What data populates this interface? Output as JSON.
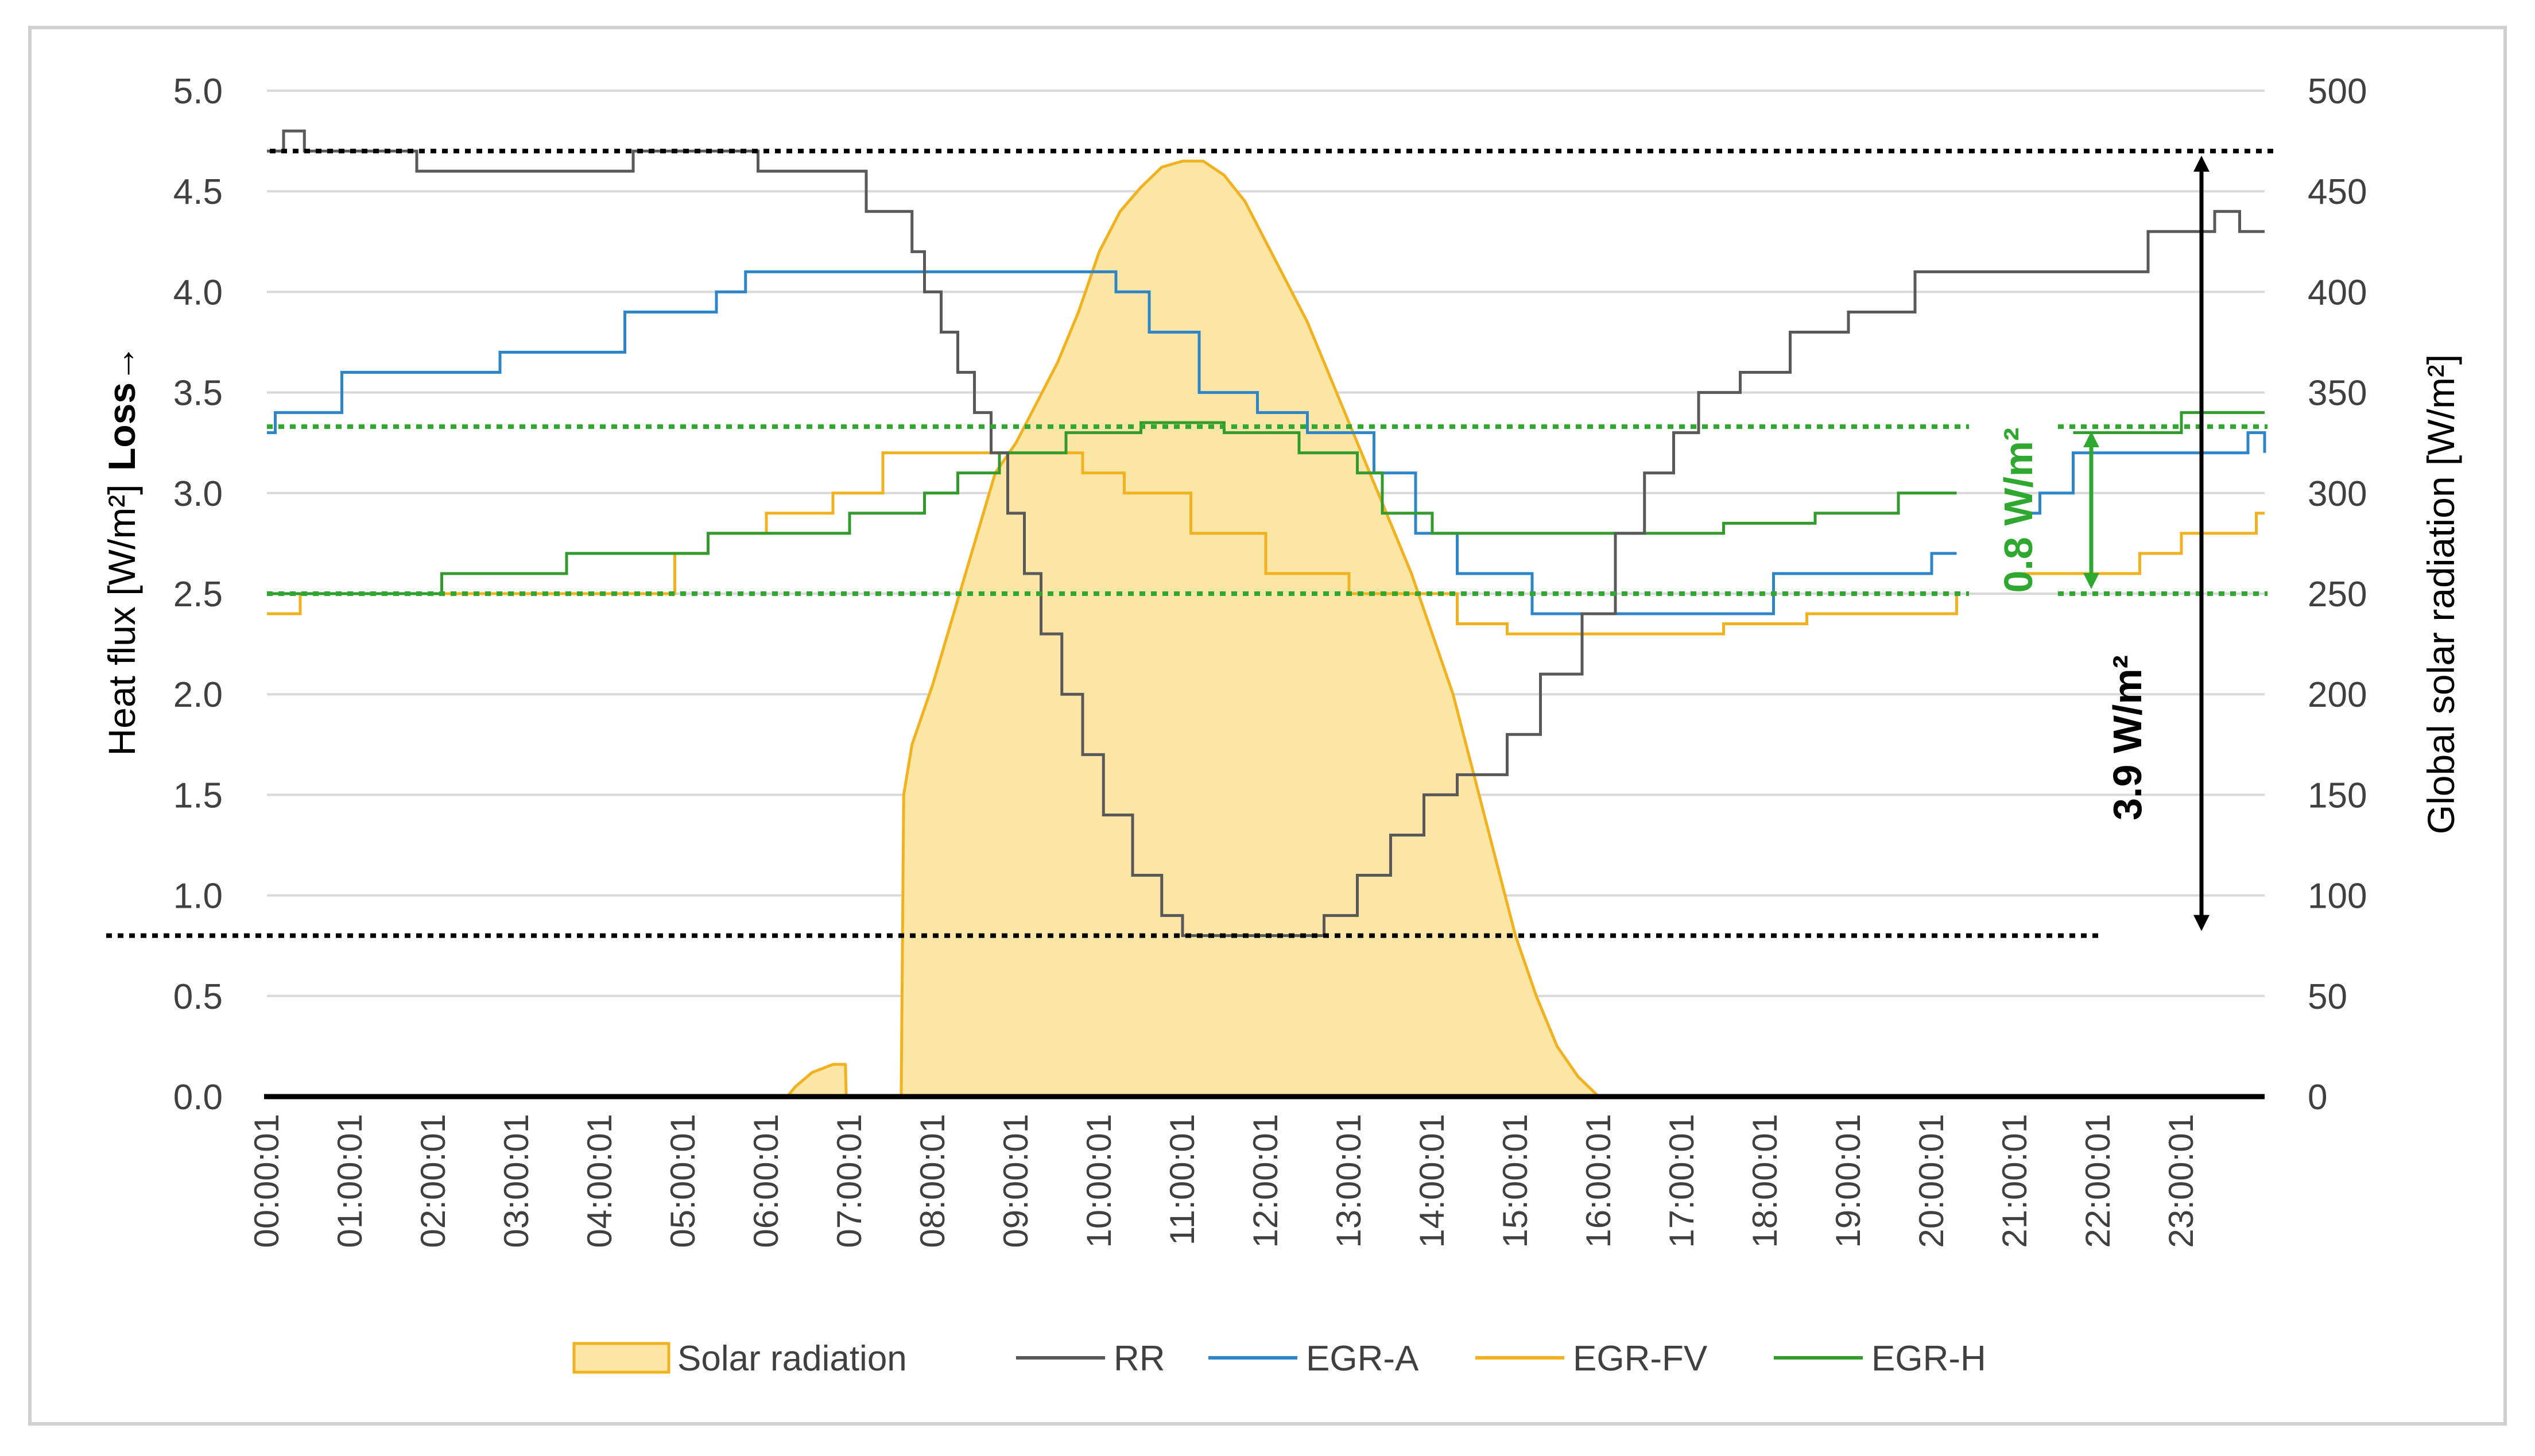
{
  "chart_data": {
    "type": "line",
    "title": "",
    "xlabel": "",
    "ylabel_left": "Heat flux [W/m²]",
    "ylabel_loss": "Loss→",
    "ylabel_right": "Global solar radiation [W/m²]",
    "ylim_left": [
      0,
      5
    ],
    "ylim_right": [
      0,
      500
    ],
    "left_ticks": [
      "0.0",
      "0.5",
      "1.0",
      "1.5",
      "2.0",
      "2.5",
      "3.0",
      "3.5",
      "4.0",
      "4.5",
      "5.0"
    ],
    "right_ticks": [
      "0",
      "50",
      "100",
      "150",
      "200",
      "250",
      "300",
      "350",
      "400",
      "450",
      "500"
    ],
    "x_ticks": [
      "00:00:01",
      "01:00:01",
      "02:00:01",
      "03:00:01",
      "04:00:01",
      "05:00:01",
      "06:00:01",
      "07:00:01",
      "08:00:01",
      "09:00:01",
      "10:00:01",
      "11:00:01",
      "12:00:01",
      "13:00:01",
      "14:00:01",
      "15:00:01",
      "16:00:01",
      "17:00:01",
      "18:00:01",
      "19:00:01",
      "20:00:01",
      "21:00:01",
      "22:00:01",
      "23:00:01"
    ],
    "x_range_hours": [
      0,
      24
    ],
    "grid": true,
    "legend_position": "bottom",
    "colors": {
      "solar_fill": "#FCE6A6",
      "solar_line": "#F2B220",
      "RR": "#595959",
      "EGR-A": "#2E86C8",
      "EGR-FV": "#F2B220",
      "EGR-H": "#339A2E",
      "annotation_green": "#2EA82E",
      "annotation_black": "#000000",
      "grid": "#D9D9D9",
      "axis_text": "#404040"
    },
    "series": [
      {
        "name": "Solar radiation",
        "kind": "area",
        "axis": "right",
        "points": [
          [
            0,
            0
          ],
          [
            6.25,
            0
          ],
          [
            6.35,
            5
          ],
          [
            6.55,
            12
          ],
          [
            6.8,
            16
          ],
          [
            6.95,
            16
          ],
          [
            6.96,
            0
          ],
          [
            7.62,
            0
          ],
          [
            7.65,
            150
          ],
          [
            7.75,
            175
          ],
          [
            8.0,
            205
          ],
          [
            8.25,
            240
          ],
          [
            8.5,
            275
          ],
          [
            8.75,
            310
          ],
          [
            9.0,
            325
          ],
          [
            9.25,
            345
          ],
          [
            9.5,
            365
          ],
          [
            9.75,
            390
          ],
          [
            10.0,
            420
          ],
          [
            10.25,
            440
          ],
          [
            10.5,
            452
          ],
          [
            10.75,
            462
          ],
          [
            11.0,
            465
          ],
          [
            11.25,
            465
          ],
          [
            11.5,
            458
          ],
          [
            11.75,
            445
          ],
          [
            12.0,
            425
          ],
          [
            12.25,
            405
          ],
          [
            12.5,
            385
          ],
          [
            12.75,
            360
          ],
          [
            13.0,
            335
          ],
          [
            13.25,
            310
          ],
          [
            13.5,
            285
          ],
          [
            13.75,
            260
          ],
          [
            14.0,
            230
          ],
          [
            14.25,
            200
          ],
          [
            14.5,
            160
          ],
          [
            14.75,
            120
          ],
          [
            15.0,
            80
          ],
          [
            15.25,
            50
          ],
          [
            15.5,
            25
          ],
          [
            15.75,
            10
          ],
          [
            16.0,
            0
          ],
          [
            24,
            0
          ]
        ]
      },
      {
        "name": "RR",
        "kind": "step",
        "axis": "left",
        "points": [
          [
            0,
            4.7
          ],
          [
            0.2,
            4.8
          ],
          [
            0.45,
            4.7
          ],
          [
            1.8,
            4.6
          ],
          [
            4.4,
            4.7
          ],
          [
            5.9,
            4.6
          ],
          [
            7.2,
            4.4
          ],
          [
            7.75,
            4.2
          ],
          [
            7.9,
            4.0
          ],
          [
            8.1,
            3.8
          ],
          [
            8.3,
            3.6
          ],
          [
            8.5,
            3.4
          ],
          [
            8.7,
            3.2
          ],
          [
            8.9,
            2.9
          ],
          [
            9.1,
            2.6
          ],
          [
            9.3,
            2.3
          ],
          [
            9.55,
            2.0
          ],
          [
            9.8,
            1.7
          ],
          [
            10.05,
            1.4
          ],
          [
            10.4,
            1.1
          ],
          [
            10.75,
            0.9
          ],
          [
            11.0,
            0.8
          ],
          [
            12.7,
            0.9
          ],
          [
            13.1,
            1.1
          ],
          [
            13.5,
            1.3
          ],
          [
            13.9,
            1.5
          ],
          [
            14.3,
            1.6
          ],
          [
            14.9,
            1.8
          ],
          [
            15.3,
            2.1
          ],
          [
            15.8,
            2.4
          ],
          [
            16.2,
            2.8
          ],
          [
            16.55,
            3.1
          ],
          [
            16.9,
            3.3
          ],
          [
            17.2,
            3.5
          ],
          [
            17.7,
            3.6
          ],
          [
            18.3,
            3.8
          ],
          [
            19.0,
            3.9
          ],
          [
            19.8,
            4.1
          ],
          [
            22.6,
            4.3
          ],
          [
            23.4,
            4.4
          ],
          [
            23.7,
            4.3
          ],
          [
            24,
            4.3
          ]
        ]
      },
      {
        "name": "EGR-A",
        "kind": "step",
        "axis": "left",
        "segments": [
          [
            [
              0,
              3.3
            ],
            [
              0.1,
              3.4
            ],
            [
              0.9,
              3.6
            ],
            [
              2.8,
              3.7
            ],
            [
              4.3,
              3.9
            ],
            [
              5.4,
              4.0
            ],
            [
              5.75,
              4.1
            ],
            [
              10.2,
              4.0
            ],
            [
              10.6,
              3.8
            ],
            [
              11.2,
              3.5
            ],
            [
              11.9,
              3.4
            ],
            [
              12.5,
              3.3
            ],
            [
              13.3,
              3.1
            ],
            [
              13.8,
              2.8
            ],
            [
              14.3,
              2.6
            ],
            [
              15.2,
              2.4
            ],
            [
              18.1,
              2.6
            ],
            [
              19.2,
              2.6
            ],
            [
              20.0,
              2.7
            ],
            [
              20.3,
              2.7
            ]
          ],
          [
            [
              21.1,
              2.9
            ],
            [
              21.3,
              3.0
            ],
            [
              21.7,
              3.2
            ],
            [
              23.8,
              3.3
            ],
            [
              24,
              3.2
            ]
          ]
        ]
      },
      {
        "name": "EGR-FV",
        "kind": "step",
        "axis": "left",
        "segments": [
          [
            [
              0,
              2.4
            ],
            [
              0.4,
              2.5
            ],
            [
              4.9,
              2.7
            ],
            [
              5.3,
              2.8
            ],
            [
              6.0,
              2.9
            ],
            [
              6.8,
              3.0
            ],
            [
              7.4,
              3.2
            ],
            [
              9.8,
              3.1
            ],
            [
              10.3,
              3.0
            ],
            [
              11.1,
              2.8
            ],
            [
              12.0,
              2.6
            ],
            [
              13.0,
              2.5
            ],
            [
              14.3,
              2.35
            ],
            [
              14.9,
              2.3
            ],
            [
              17.5,
              2.35
            ],
            [
              18.5,
              2.4
            ],
            [
              20.3,
              2.5
            ]
          ],
          [
            [
              21.1,
              2.6
            ],
            [
              22.5,
              2.7
            ],
            [
              23.0,
              2.8
            ],
            [
              23.9,
              2.9
            ],
            [
              24,
              2.9
            ]
          ]
        ]
      },
      {
        "name": "EGR-H",
        "kind": "step",
        "axis": "left",
        "segments": [
          [
            [
              0,
              2.5
            ],
            [
              2.1,
              2.6
            ],
            [
              3.6,
              2.7
            ],
            [
              4.6,
              2.7
            ],
            [
              5.3,
              2.8
            ],
            [
              6.0,
              2.8
            ],
            [
              7.0,
              2.9
            ],
            [
              7.9,
              3.0
            ],
            [
              8.3,
              3.1
            ],
            [
              8.8,
              3.2
            ],
            [
              9.6,
              3.3
            ],
            [
              10.5,
              3.35
            ],
            [
              11.5,
              3.3
            ],
            [
              12.4,
              3.2
            ],
            [
              13.1,
              3.1
            ],
            [
              13.4,
              2.9
            ],
            [
              14.0,
              2.8
            ],
            [
              16.5,
              2.8
            ],
            [
              17.5,
              2.85
            ],
            [
              18.6,
              2.9
            ],
            [
              19.6,
              3.0
            ],
            [
              20.3,
              3.0
            ]
          ],
          [
            [
              21.7,
              3.3
            ],
            [
              23.0,
              3.4
            ],
            [
              24,
              3.4
            ]
          ]
        ]
      }
    ],
    "reference_lines": [
      {
        "axis": "left",
        "y": 4.7,
        "color": "black"
      },
      {
        "axis": "left",
        "y": 0.8,
        "color": "black"
      },
      {
        "axis": "left",
        "y": 3.33,
        "color": "green"
      },
      {
        "axis": "left",
        "y": 2.5,
        "color": "green"
      }
    ],
    "annotations": [
      {
        "text": "0.8 W/m²",
        "color": "green",
        "span": [
          2.5,
          3.33
        ]
      },
      {
        "text": "3.9 W/m²",
        "color": "black",
        "span": [
          0.8,
          4.7
        ]
      }
    ],
    "legend": [
      "Solar radiation",
      "RR",
      "EGR-A",
      "EGR-FV",
      "EGR-H"
    ]
  }
}
